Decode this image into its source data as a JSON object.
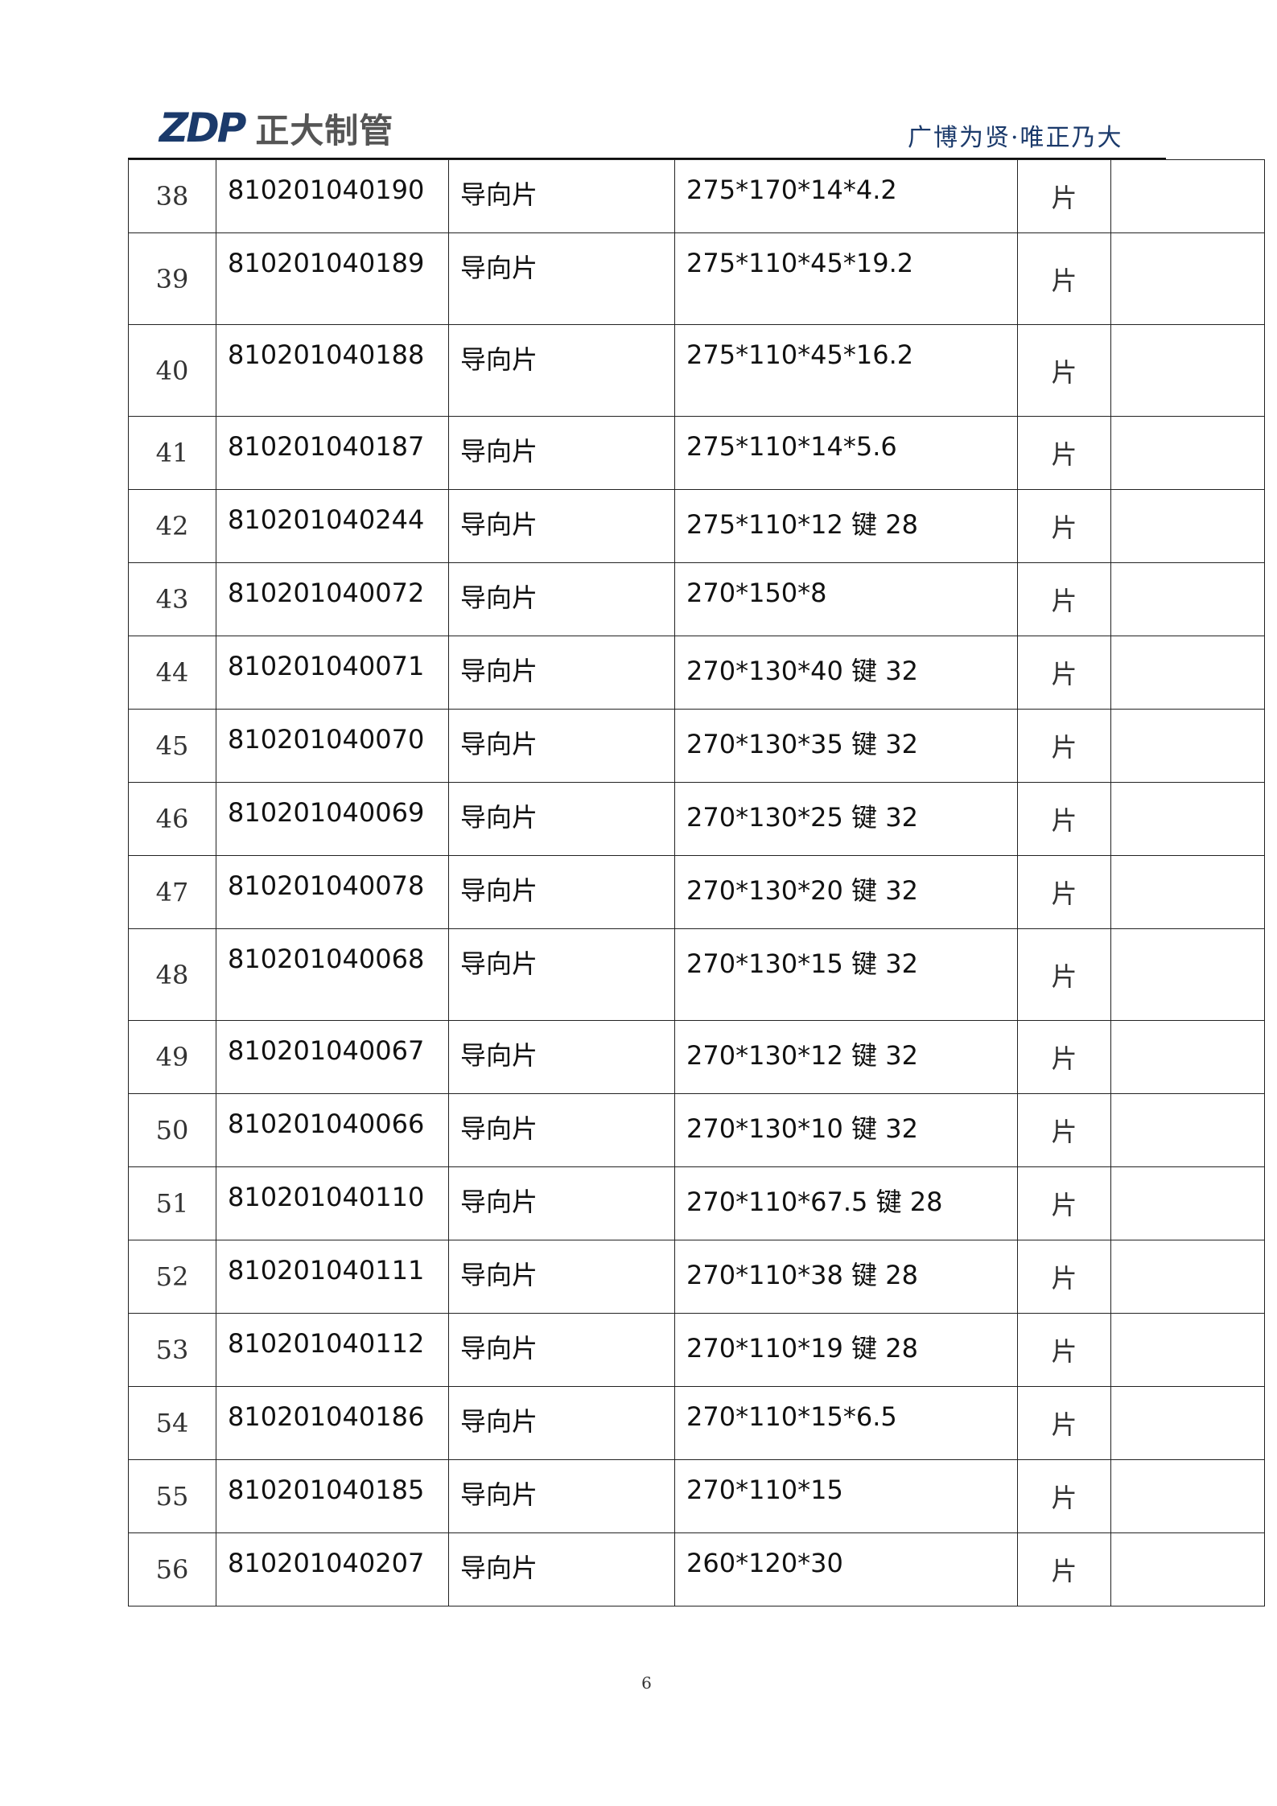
{
  "header": {
    "logo_mark": "ZDP",
    "logo_text": "正大制管",
    "slogan": "广博为贤·唯正乃大"
  },
  "rows": [
    {
      "no": "38",
      "code": "810201040190",
      "name": "导向片",
      "spec": "275*170*14*4.2",
      "unit": "片",
      "note": "",
      "tall": false
    },
    {
      "no": "39",
      "code": "810201040189",
      "name": "导向片",
      "spec": "275*110*45*19.2",
      "unit": "片",
      "note": "",
      "tall": true
    },
    {
      "no": "40",
      "code": "810201040188",
      "name": "导向片",
      "spec": "275*110*45*16.2",
      "unit": "片",
      "note": "",
      "tall": true
    },
    {
      "no": "41",
      "code": "810201040187",
      "name": "导向片",
      "spec": "275*110*14*5.6",
      "unit": "片",
      "note": "",
      "tall": false
    },
    {
      "no": "42",
      "code": "810201040244",
      "name": "导向片",
      "spec": "275*110*12 键 28",
      "unit": "片",
      "note": "",
      "tall": false
    },
    {
      "no": "43",
      "code": "810201040072",
      "name": "导向片",
      "spec": "270*150*8",
      "unit": "片",
      "note": "",
      "tall": false
    },
    {
      "no": "44",
      "code": "810201040071",
      "name": "导向片",
      "spec": "270*130*40 键 32",
      "unit": "片",
      "note": "",
      "tall": false
    },
    {
      "no": "45",
      "code": "810201040070",
      "name": "导向片",
      "spec": "270*130*35 键 32",
      "unit": "片",
      "note": "",
      "tall": false
    },
    {
      "no": "46",
      "code": "810201040069",
      "name": "导向片",
      "spec": "270*130*25 键 32",
      "unit": "片",
      "note": "",
      "tall": false
    },
    {
      "no": "47",
      "code": "810201040078",
      "name": "导向片",
      "spec": "270*130*20 键 32",
      "unit": "片",
      "note": "",
      "tall": false
    },
    {
      "no": "48",
      "code": "810201040068",
      "name": "导向片",
      "spec": "270*130*15 键 32",
      "unit": "片",
      "note": "",
      "tall": true
    },
    {
      "no": "49",
      "code": "810201040067",
      "name": "导向片",
      "spec": "270*130*12 键 32",
      "unit": "片",
      "note": "",
      "tall": false
    },
    {
      "no": "50",
      "code": "810201040066",
      "name": "导向片",
      "spec": "270*130*10 键 32",
      "unit": "片",
      "note": "",
      "tall": false
    },
    {
      "no": "51",
      "code": "810201040110",
      "name": "导向片",
      "spec": "270*110*67.5 键 28",
      "unit": "片",
      "note": "",
      "tall": false
    },
    {
      "no": "52",
      "code": "810201040111",
      "name": "导向片",
      "spec": "270*110*38 键 28",
      "unit": "片",
      "note": "",
      "tall": false
    },
    {
      "no": "53",
      "code": "810201040112",
      "name": "导向片",
      "spec": "270*110*19 键 28",
      "unit": "片",
      "note": "",
      "tall": false
    },
    {
      "no": "54",
      "code": "810201040186",
      "name": "导向片",
      "spec": "270*110*15*6.5",
      "unit": "片",
      "note": "",
      "tall": false
    },
    {
      "no": "55",
      "code": "810201040185",
      "name": "导向片",
      "spec": "270*110*15",
      "unit": "片",
      "note": "",
      "tall": false
    },
    {
      "no": "56",
      "code": "810201040207",
      "name": "导向片",
      "spec": "260*120*30",
      "unit": "片",
      "note": "",
      "tall": false
    }
  ],
  "footer": {
    "page_number": "6"
  }
}
